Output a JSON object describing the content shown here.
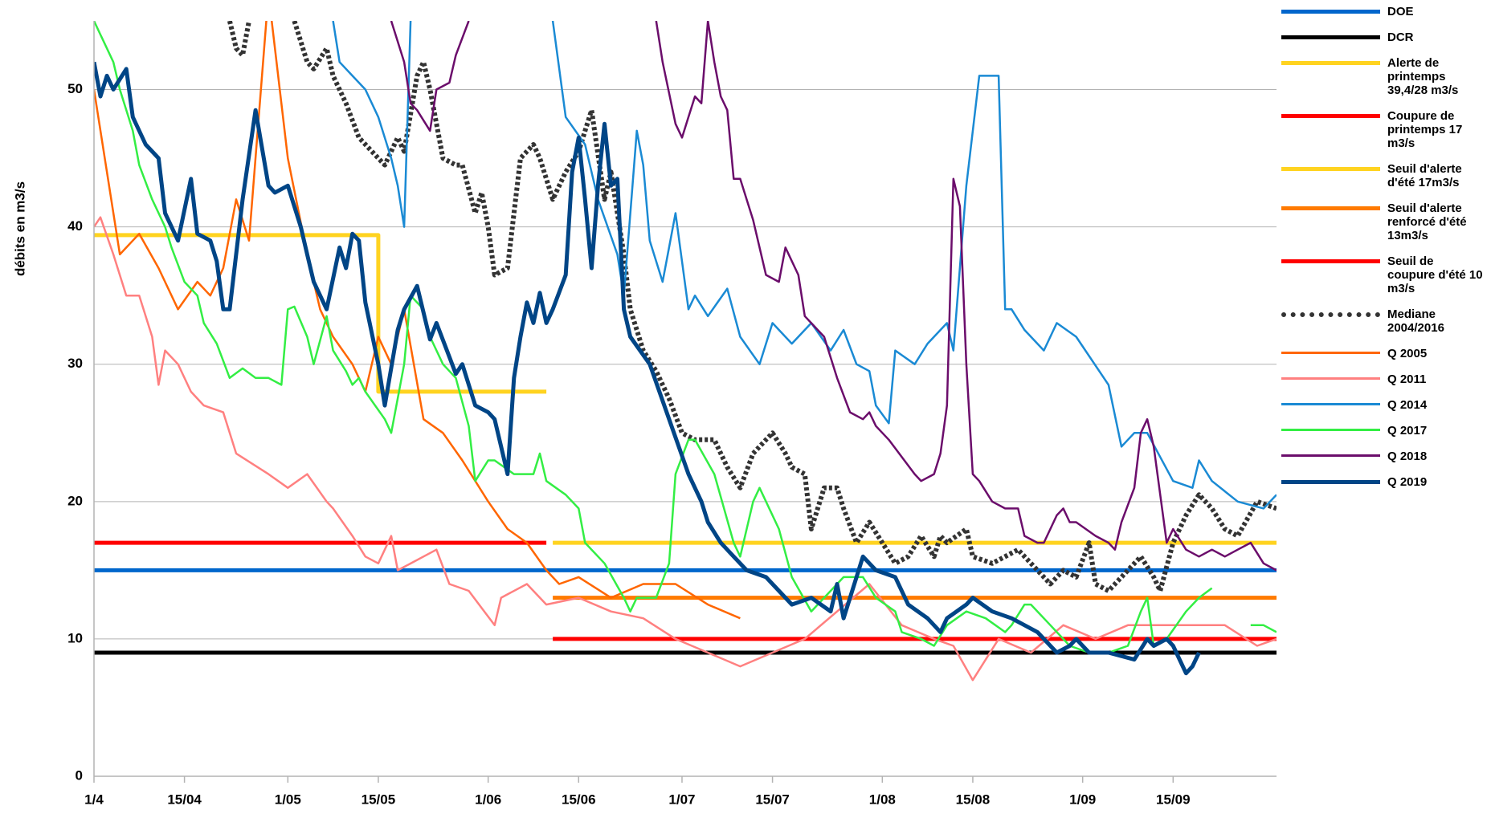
{
  "chart_data": {
    "type": "line",
    "y_label": "débits en m3/s",
    "xlim": [
      0,
      183
    ],
    "xticks": [
      {
        "value": 0,
        "label": "1/4"
      },
      {
        "value": 14,
        "label": "15/04"
      },
      {
        "value": 30,
        "label": "1/05"
      },
      {
        "value": 44,
        "label": "15/05"
      },
      {
        "value": 61,
        "label": "1/06"
      },
      {
        "value": 75,
        "label": "15/06"
      },
      {
        "value": 91,
        "label": "1/07"
      },
      {
        "value": 105,
        "label": "15/07"
      },
      {
        "value": 122,
        "label": "1/08"
      },
      {
        "value": 136,
        "label": "15/08"
      },
      {
        "value": 153,
        "label": "1/09"
      },
      {
        "value": 167,
        "label": "15/09"
      }
    ],
    "ylim": [
      0,
      55
    ],
    "yticks": [
      0,
      10,
      20,
      30,
      40,
      50
    ],
    "grid": true,
    "legend": "right",
    "series": [
      {
        "name": "DOE",
        "color": "#0066cc",
        "line_width": 5,
        "x": [
          0,
          183
        ],
        "values": [
          15,
          15
        ]
      },
      {
        "name": "DCR",
        "color": "#000000",
        "line_width": 5,
        "x": [
          0,
          183
        ],
        "values": [
          9,
          9
        ]
      },
      {
        "name": "Alerte de printemps 39,4/28 m3/s",
        "color": "#ffd320",
        "line_width": 5,
        "x": [
          0,
          44,
          44,
          70
        ],
        "values": [
          39.4,
          39.4,
          28,
          28
        ]
      },
      {
        "name": "Coupure de printemps 17 m3/s",
        "color": "#ff0000",
        "line_width": 5,
        "x": [
          0,
          70
        ],
        "values": [
          17,
          17
        ]
      },
      {
        "name": "Seuil d'alerte d'été 17m3/s",
        "color": "#ffd320",
        "line_width": 5,
        "x": [
          71,
          183
        ],
        "values": [
          17,
          17
        ]
      },
      {
        "name": "Seuil d'alerte renforcé d'été 13m3/s",
        "color": "#ff7a00",
        "line_width": 5,
        "x": [
          71,
          183
        ],
        "values": [
          13,
          13
        ]
      },
      {
        "name": "Seuil de coupure d'été 10 m3/s",
        "color": "#ff0000",
        "line_width": 5,
        "x": [
          71,
          183
        ],
        "values": [
          10,
          10
        ]
      },
      {
        "name": "Mediane 2004/2016",
        "color": "#333333",
        "line_width": 6,
        "style": "dotted",
        "x": [
          21,
          22,
          23,
          24,
          25,
          31,
          33,
          34,
          36,
          37,
          39,
          41,
          44,
          45,
          47,
          48,
          50,
          51,
          52,
          54,
          56,
          57,
          59,
          60,
          61,
          62,
          64,
          65,
          66,
          68,
          69,
          71,
          73,
          75,
          77,
          79,
          80,
          82,
          83,
          85,
          87,
          89,
          91,
          93,
          96,
          98,
          100,
          102,
          104,
          105,
          107,
          108,
          110,
          111,
          112,
          113,
          115,
          116,
          118,
          120,
          122,
          124,
          126,
          128,
          130,
          131,
          132,
          135,
          136,
          139,
          141,
          143,
          146,
          148,
          150,
          152,
          154,
          155,
          157,
          162,
          164,
          165,
          167,
          169,
          171,
          173,
          175,
          177,
          180,
          183
        ],
        "values": [
          55,
          53,
          52.5,
          55,
          null,
          55,
          52,
          51.5,
          53,
          51,
          49,
          46.5,
          45,
          44.5,
          46.5,
          45.5,
          51,
          52,
          50,
          45,
          44.5,
          44.5,
          41,
          42.5,
          40,
          36.5,
          37,
          41,
          45,
          46,
          45,
          42,
          44,
          45.5,
          48.5,
          42,
          44,
          38,
          34,
          31,
          29.5,
          27.5,
          25,
          24.5,
          24.5,
          22.5,
          21,
          23.5,
          24.5,
          25,
          23.5,
          22.5,
          22,
          18,
          19.5,
          21,
          21,
          19.5,
          17,
          18.5,
          17,
          15.5,
          16,
          17.5,
          16,
          17.5,
          17,
          18,
          16,
          15.5,
          16,
          16.5,
          15,
          14,
          15,
          14.5,
          17,
          14,
          13.5,
          16,
          14.5,
          13.5,
          17,
          19,
          20.5,
          19.5,
          18,
          17.5,
          20,
          19.5
        ]
      },
      {
        "name": "Q 2005",
        "color": "#ff6600",
        "line_width": 2.5,
        "x": [
          0,
          4,
          7,
          10,
          13,
          16,
          18,
          20,
          22,
          24,
          27,
          30,
          33,
          35,
          37,
          40,
          42,
          44,
          46,
          48,
          51,
          54,
          57,
          61,
          64,
          67,
          70,
          72,
          75,
          80,
          85,
          90,
          95,
          100
        ],
        "values": [
          50,
          38,
          39.5,
          37,
          34,
          36,
          35,
          37,
          42,
          39,
          57,
          45,
          38,
          34,
          32,
          30,
          28,
          32,
          30,
          34,
          26,
          25,
          23,
          20,
          18,
          17,
          15,
          14,
          14.5,
          13,
          14,
          14,
          12.5,
          11.5
        ]
      },
      {
        "name": "Q 2011",
        "color": "#ff8080",
        "line_width": 2.5,
        "x": [
          0,
          1,
          3,
          5,
          7,
          9,
          10,
          11,
          13,
          15,
          17,
          20,
          22,
          27,
          30,
          33,
          36,
          37,
          40,
          42,
          44,
          46,
          47,
          53,
          55,
          58,
          62,
          63,
          67,
          70,
          75,
          80,
          85,
          90,
          95,
          100,
          105,
          110,
          115,
          120,
          125,
          130,
          133,
          136,
          140,
          145,
          150,
          155,
          160,
          165,
          170,
          175,
          180,
          183
        ],
        "values": [
          40,
          40.7,
          38,
          35,
          35,
          32,
          28.5,
          31,
          30,
          28,
          27,
          26.5,
          23.5,
          22,
          21,
          22,
          20,
          19.5,
          17.5,
          16,
          15.5,
          17.5,
          15,
          16.5,
          14,
          13.5,
          11,
          13,
          14,
          12.5,
          13,
          12,
          11.5,
          10,
          9,
          8,
          9,
          10,
          12,
          14,
          11,
          10,
          9.5,
          7,
          10,
          9,
          11,
          10,
          11,
          11,
          11,
          11,
          9.5,
          10
        ]
      },
      {
        "name": "Q 2014",
        "color": "#1a8ad4",
        "line_width": 2.5,
        "x": [
          37,
          38,
          40,
          42,
          44,
          46,
          47,
          48,
          49,
          50,
          71,
          73,
          76,
          78,
          81,
          82,
          84,
          85,
          86,
          88,
          90,
          92,
          93,
          95,
          98,
          100,
          103,
          105,
          108,
          111,
          114,
          116,
          118,
          120,
          121,
          123,
          124,
          127,
          129,
          132,
          133,
          135,
          137,
          140,
          141,
          142,
          144,
          147,
          149,
          152,
          157,
          159,
          161,
          163,
          167,
          170,
          171,
          173,
          177,
          181,
          183
        ],
        "values": [
          55,
          52,
          51,
          50,
          48,
          45,
          43,
          40,
          55,
          null,
          55,
          48,
          46,
          42,
          38,
          35,
          47,
          44.5,
          39,
          36,
          41,
          34,
          35,
          33.5,
          35.5,
          32,
          30,
          33,
          31.5,
          33,
          31,
          32.5,
          30,
          29.5,
          27,
          25.7,
          31,
          30,
          31.5,
          33,
          31,
          43,
          51,
          51,
          34,
          34,
          32.5,
          31,
          33,
          32,
          28.5,
          24,
          25,
          25,
          21.5,
          21,
          23,
          21.5,
          20,
          19.5,
          20.5
        ]
      },
      {
        "name": "Q 2017",
        "color": "#33ee44",
        "line_width": 2.5,
        "x": [
          0,
          1,
          3,
          4,
          6,
          7,
          9,
          11,
          12,
          14,
          16,
          17,
          19,
          21,
          23,
          25,
          27,
          29,
          30,
          31,
          33,
          34,
          36,
          37,
          39,
          40,
          41,
          42,
          45,
          46,
          48,
          49,
          51,
          52,
          54,
          56,
          58,
          59,
          61,
          62,
          65,
          68,
          69,
          70,
          73,
          75,
          76,
          79,
          82,
          83,
          84,
          87,
          89,
          90,
          92,
          93,
          96,
          99,
          100,
          102,
          103,
          106,
          108,
          111,
          113,
          116,
          119,
          121,
          124,
          125,
          128,
          130,
          132,
          135,
          138,
          141,
          142,
          144,
          145,
          148,
          151,
          154,
          157,
          160,
          162,
          163,
          164,
          166,
          169,
          171,
          173,
          176,
          179,
          181,
          183
        ],
        "values": [
          55,
          54,
          52,
          50,
          47,
          44.5,
          42,
          40,
          38.5,
          36,
          35,
          33,
          31.5,
          29,
          29.7,
          29,
          29,
          28.5,
          34,
          34.2,
          32,
          30,
          33.5,
          31,
          29.5,
          28.5,
          29,
          28,
          26,
          25,
          30,
          35,
          34,
          32,
          30,
          29,
          25.5,
          21.5,
          23,
          23,
          22,
          22,
          23.5,
          21.5,
          20.5,
          19.5,
          17,
          15.5,
          13,
          12,
          13,
          13,
          15.5,
          22,
          24.5,
          24.5,
          22,
          17,
          16,
          20,
          21,
          18,
          14.5,
          12,
          13,
          14.5,
          14.5,
          13,
          12,
          10.5,
          10,
          9.5,
          11,
          12,
          11.5,
          10.5,
          11,
          12.5,
          12.5,
          11,
          9.5,
          9,
          9,
          9.5,
          12,
          13,
          9.5,
          10,
          12,
          13,
          13.7,
          null,
          11,
          11,
          10.5
        ]
      },
      {
        "name": "Q 2018",
        "color": "#6b0d6b",
        "line_width": 2.5,
        "x": [
          46,
          48,
          49,
          50,
          52,
          53,
          55,
          56,
          58,
          59,
          87,
          88,
          90,
          91,
          92,
          93,
          94,
          95,
          96,
          97,
          98,
          99,
          100,
          102,
          103,
          104,
          106,
          107,
          109,
          110,
          113,
          115,
          117,
          119,
          120,
          121,
          123,
          127,
          128,
          130,
          131,
          132,
          133,
          134,
          135,
          136,
          137,
          139,
          141,
          143,
          144,
          146,
          147,
          149,
          150,
          151,
          152,
          155,
          157,
          158,
          159,
          161,
          162,
          163,
          164,
          166,
          167,
          169,
          171,
          173,
          175,
          177,
          179,
          181,
          183
        ],
        "values": [
          55,
          52,
          49,
          48.5,
          47,
          50,
          50.5,
          52.5,
          55,
          null,
          55,
          52,
          47.5,
          46.5,
          48,
          49.5,
          49,
          55,
          52,
          49.5,
          48.5,
          43.5,
          43.5,
          40.5,
          38.5,
          36.5,
          36,
          38.5,
          36.5,
          33.5,
          32,
          29,
          26.5,
          26,
          26.5,
          25.5,
          24.5,
          22,
          21.5,
          22,
          23.5,
          27,
          43.5,
          41.5,
          30,
          22,
          21.5,
          20,
          19.5,
          19.5,
          17.5,
          17,
          17,
          19,
          19.5,
          18.5,
          18.5,
          17.5,
          17,
          16.5,
          18.5,
          21,
          25,
          26,
          24,
          17,
          18,
          16.5,
          16,
          16.5,
          16,
          16.5,
          17,
          15.5,
          15
        ]
      },
      {
        "name": "Q 2019",
        "color": "#004586",
        "line_width": 5,
        "x": [
          0,
          1,
          2,
          3,
          5,
          6,
          8,
          10,
          11,
          13,
          15,
          16,
          18,
          19,
          20,
          21,
          23,
          25,
          27,
          28,
          30,
          32,
          33,
          34,
          36,
          38,
          39,
          40,
          41,
          42,
          44,
          45,
          47,
          48,
          50,
          52,
          53,
          56,
          57,
          59,
          61,
          62,
          63,
          64,
          65,
          66,
          67,
          68,
          69,
          70,
          71,
          73,
          74,
          75,
          76,
          77,
          78,
          79,
          80,
          81,
          82,
          83,
          86,
          89,
          92,
          94,
          95,
          97,
          99,
          101,
          104,
          106,
          108,
          111,
          114,
          115,
          116,
          118,
          119,
          121,
          124,
          126,
          129,
          131,
          132,
          135,
          136,
          139,
          142,
          146,
          149,
          151,
          152,
          154,
          157,
          161,
          163,
          164,
          166,
          167,
          169,
          170,
          171
        ],
        "values": [
          52,
          49.5,
          51,
          50,
          51.5,
          48,
          46,
          45,
          41,
          39,
          43.5,
          39.5,
          39,
          37.5,
          34,
          34,
          42,
          48.5,
          43,
          42.5,
          43,
          40,
          38,
          36,
          34,
          38.5,
          37,
          39.5,
          39,
          34.5,
          30,
          27,
          32.5,
          34,
          35.7,
          31.8,
          33,
          29.3,
          30,
          27,
          26.5,
          26,
          24,
          22,
          29,
          32,
          34.5,
          33,
          35.2,
          33,
          34,
          36.5,
          44,
          46.5,
          42,
          37,
          43,
          47.5,
          43,
          43.5,
          34,
          32,
          30,
          26,
          22,
          20,
          18.5,
          17,
          16,
          15,
          14.5,
          13.5,
          12.5,
          13,
          12,
          14,
          11.5,
          14.5,
          16,
          15,
          14.5,
          12.5,
          11.5,
          10.5,
          11.5,
          12.5,
          13,
          12,
          11.5,
          10.5,
          9,
          9.5,
          10,
          9,
          9,
          8.5,
          10,
          9.5,
          10,
          9.5,
          7.5,
          8,
          9
        ]
      }
    ]
  }
}
